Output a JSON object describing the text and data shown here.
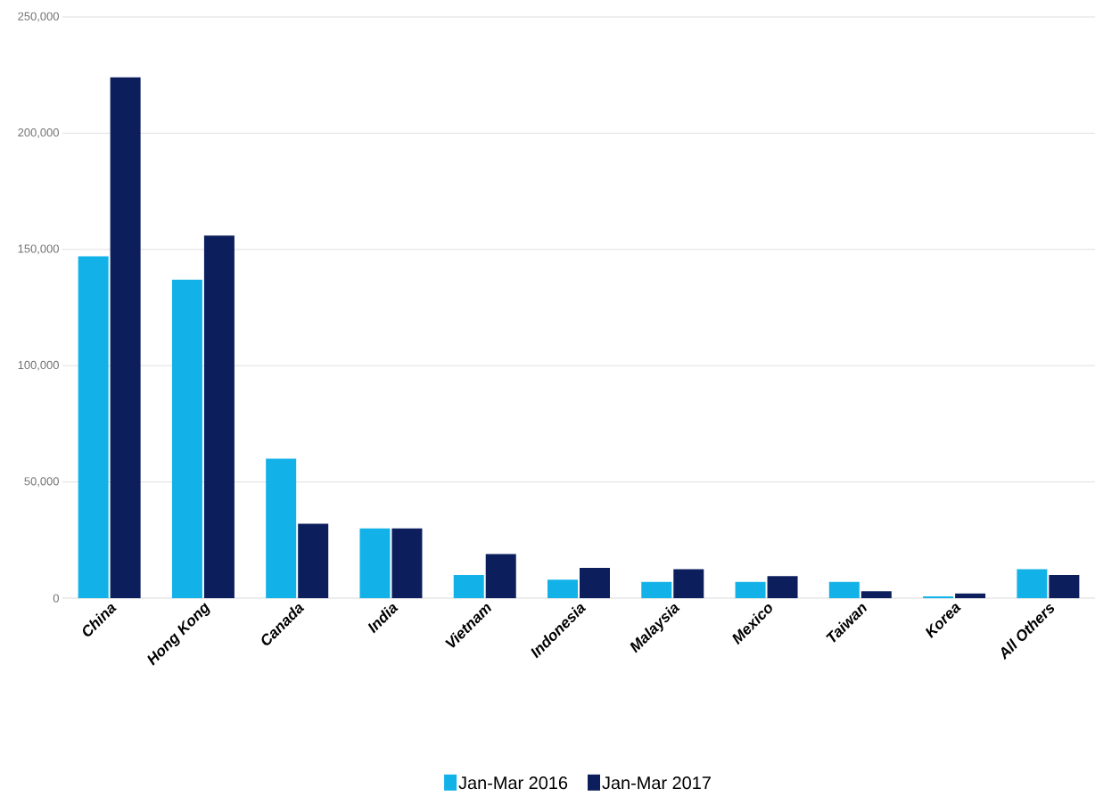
{
  "chart_data": {
    "type": "bar",
    "categories": [
      "China",
      "Hong Kong",
      "Canada",
      "India",
      "Vietnam",
      "Indonesia",
      "Malaysia",
      "Mexico",
      "Taiwan",
      "Korea",
      "All Others"
    ],
    "series": [
      {
        "name": "Jan-Mar 2016",
        "color": "#12b2e8",
        "values": [
          147000,
          137000,
          60000,
          30000,
          10000,
          8000,
          7000,
          7000,
          7000,
          800,
          12500
        ]
      },
      {
        "name": "Jan-Mar 2017",
        "color": "#0c1f5c",
        "values": [
          224000,
          156000,
          32000,
          30000,
          19000,
          13000,
          12500,
          9500,
          3000,
          2000,
          10000
        ]
      }
    ],
    "ylim": [
      0,
      250000
    ],
    "yticks": [
      0,
      {
        "value": 50000,
        "label": "50,000"
      },
      {
        "value": 100000,
        "label": "100,000"
      },
      {
        "value": 150000,
        "label": "150,000"
      },
      {
        "value": 200000,
        "label": "200,000"
      },
      {
        "value": 250000,
        "label": "250,000"
      }
    ],
    "grid": "y",
    "legend": "bottom"
  }
}
